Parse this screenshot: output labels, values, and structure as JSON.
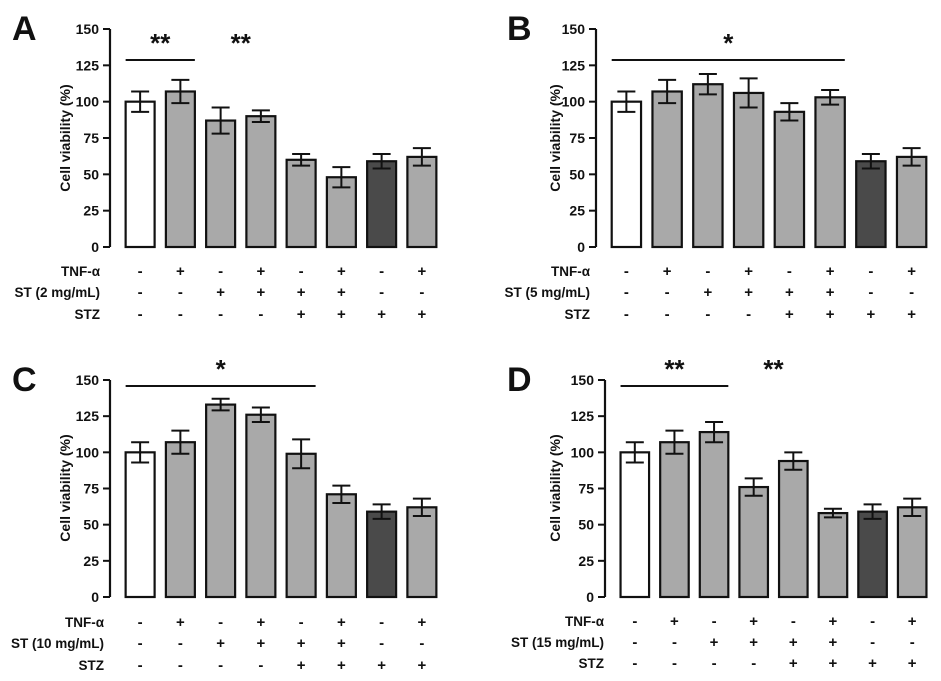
{
  "chart_data": [
    {
      "type": "bar",
      "panel": "A",
      "ylabel": "Cell viability  (%)",
      "ylim": [
        0,
        150
      ],
      "yticks": [
        0,
        25,
        50,
        75,
        100,
        125,
        150
      ],
      "values": [
        100,
        107,
        87,
        90,
        60,
        48,
        59,
        62
      ],
      "errors": [
        7,
        8,
        9,
        4,
        4,
        7,
        5,
        6
      ],
      "fills": [
        "#ffffff",
        "#a9a9a9",
        "#a9a9a9",
        "#a9a9a9",
        "#a9a9a9",
        "#a9a9a9",
        "#4a4a4a",
        "#a9a9a9"
      ],
      "condition_rows": [
        {
          "label": "TNF-α",
          "symbols": [
            "-",
            "+",
            "-",
            "+",
            "-",
            "+",
            "-",
            "+"
          ]
        },
        {
          "label": "ST (2 mg/mL)",
          "symbols": [
            "-",
            "-",
            "+",
            "+",
            "+",
            "+",
            "-",
            "-"
          ]
        },
        {
          "label": "STZ",
          "symbols": [
            "-",
            "-",
            "-",
            "-",
            "+",
            "+",
            "+",
            "+"
          ]
        }
      ],
      "significance": [
        {
          "text": "**",
          "from": 0,
          "to": 1,
          "line": true
        },
        {
          "text": "**",
          "from": 2,
          "to": 3,
          "line": false
        }
      ]
    },
    {
      "type": "bar",
      "panel": "B",
      "ylabel": "Cell viability (%)",
      "ylim": [
        0,
        150
      ],
      "yticks": [
        0,
        25,
        50,
        75,
        100,
        125,
        150
      ],
      "values": [
        100,
        107,
        112,
        106,
        93,
        103,
        59,
        62
      ],
      "errors": [
        7,
        8,
        7,
        10,
        6,
        5,
        5,
        6
      ],
      "fills": [
        "#ffffff",
        "#a9a9a9",
        "#a9a9a9",
        "#a9a9a9",
        "#a9a9a9",
        "#a9a9a9",
        "#4a4a4a",
        "#a9a9a9"
      ],
      "condition_rows": [
        {
          "label": "TNF-α",
          "symbols": [
            "-",
            "+",
            "-",
            "+",
            "-",
            "+",
            "-",
            "+"
          ]
        },
        {
          "label": "ST (5 mg/mL)",
          "symbols": [
            "-",
            "-",
            "+",
            "+",
            "+",
            "+",
            "-",
            "-"
          ]
        },
        {
          "label": "STZ",
          "symbols": [
            "-",
            "-",
            "-",
            "-",
            "+",
            "+",
            "+",
            "+"
          ]
        }
      ],
      "significance": [
        {
          "text": "*",
          "from": 0,
          "to": 5,
          "line": true
        }
      ]
    },
    {
      "type": "bar",
      "panel": "C",
      "ylabel": "Cell viability  (%)",
      "ylim": [
        0,
        150
      ],
      "yticks": [
        0,
        25,
        50,
        75,
        100,
        125,
        150
      ],
      "values": [
        100,
        107,
        133,
        126,
        99,
        71,
        59,
        62
      ],
      "errors": [
        7,
        8,
        4,
        5,
        10,
        6,
        5,
        6
      ],
      "fills": [
        "#ffffff",
        "#a9a9a9",
        "#a9a9a9",
        "#a9a9a9",
        "#a9a9a9",
        "#a9a9a9",
        "#4a4a4a",
        "#a9a9a9"
      ],
      "condition_rows": [
        {
          "label": "TNF-α",
          "symbols": [
            "-",
            "+",
            "-",
            "+",
            "-",
            "+",
            "-",
            "+"
          ]
        },
        {
          "label": "ST (10 mg/mL)",
          "symbols": [
            "-",
            "-",
            "+",
            "+",
            "+",
            "+",
            "-",
            "-"
          ]
        },
        {
          "label": "STZ",
          "symbols": [
            "-",
            "-",
            "-",
            "-",
            "+",
            "+",
            "+",
            "+"
          ]
        }
      ],
      "significance": [
        {
          "text": "*",
          "from": 0,
          "to": 4,
          "line": true
        }
      ]
    },
    {
      "type": "bar",
      "panel": "D",
      "ylabel": "Cell viability (%)",
      "ylim": [
        0,
        150
      ],
      "yticks": [
        0,
        25,
        50,
        75,
        100,
        125,
        150
      ],
      "values": [
        100,
        107,
        114,
        76,
        94,
        58,
        59,
        62
      ],
      "errors": [
        7,
        8,
        7,
        6,
        6,
        3,
        5,
        6
      ],
      "fills": [
        "#ffffff",
        "#a9a9a9",
        "#a9a9a9",
        "#a9a9a9",
        "#a9a9a9",
        "#a9a9a9",
        "#4a4a4a",
        "#a9a9a9"
      ],
      "condition_rows": [
        {
          "label": "TNF-α",
          "symbols": [
            "-",
            "+",
            "-",
            "+",
            "-",
            "+",
            "-",
            "+"
          ]
        },
        {
          "label": "ST (15 mg/mL)",
          "symbols": [
            "-",
            "-",
            "+",
            "+",
            "+",
            "+",
            "-",
            "-"
          ]
        },
        {
          "label": "STZ",
          "symbols": [
            "-",
            "-",
            "-",
            "-",
            "+",
            "+",
            "+",
            "+"
          ]
        }
      ],
      "significance": [
        {
          "text": "**",
          "from": 0,
          "to": 2,
          "line": true
        },
        {
          "text": "**",
          "from": 3,
          "to": 4,
          "line": false
        }
      ]
    }
  ]
}
